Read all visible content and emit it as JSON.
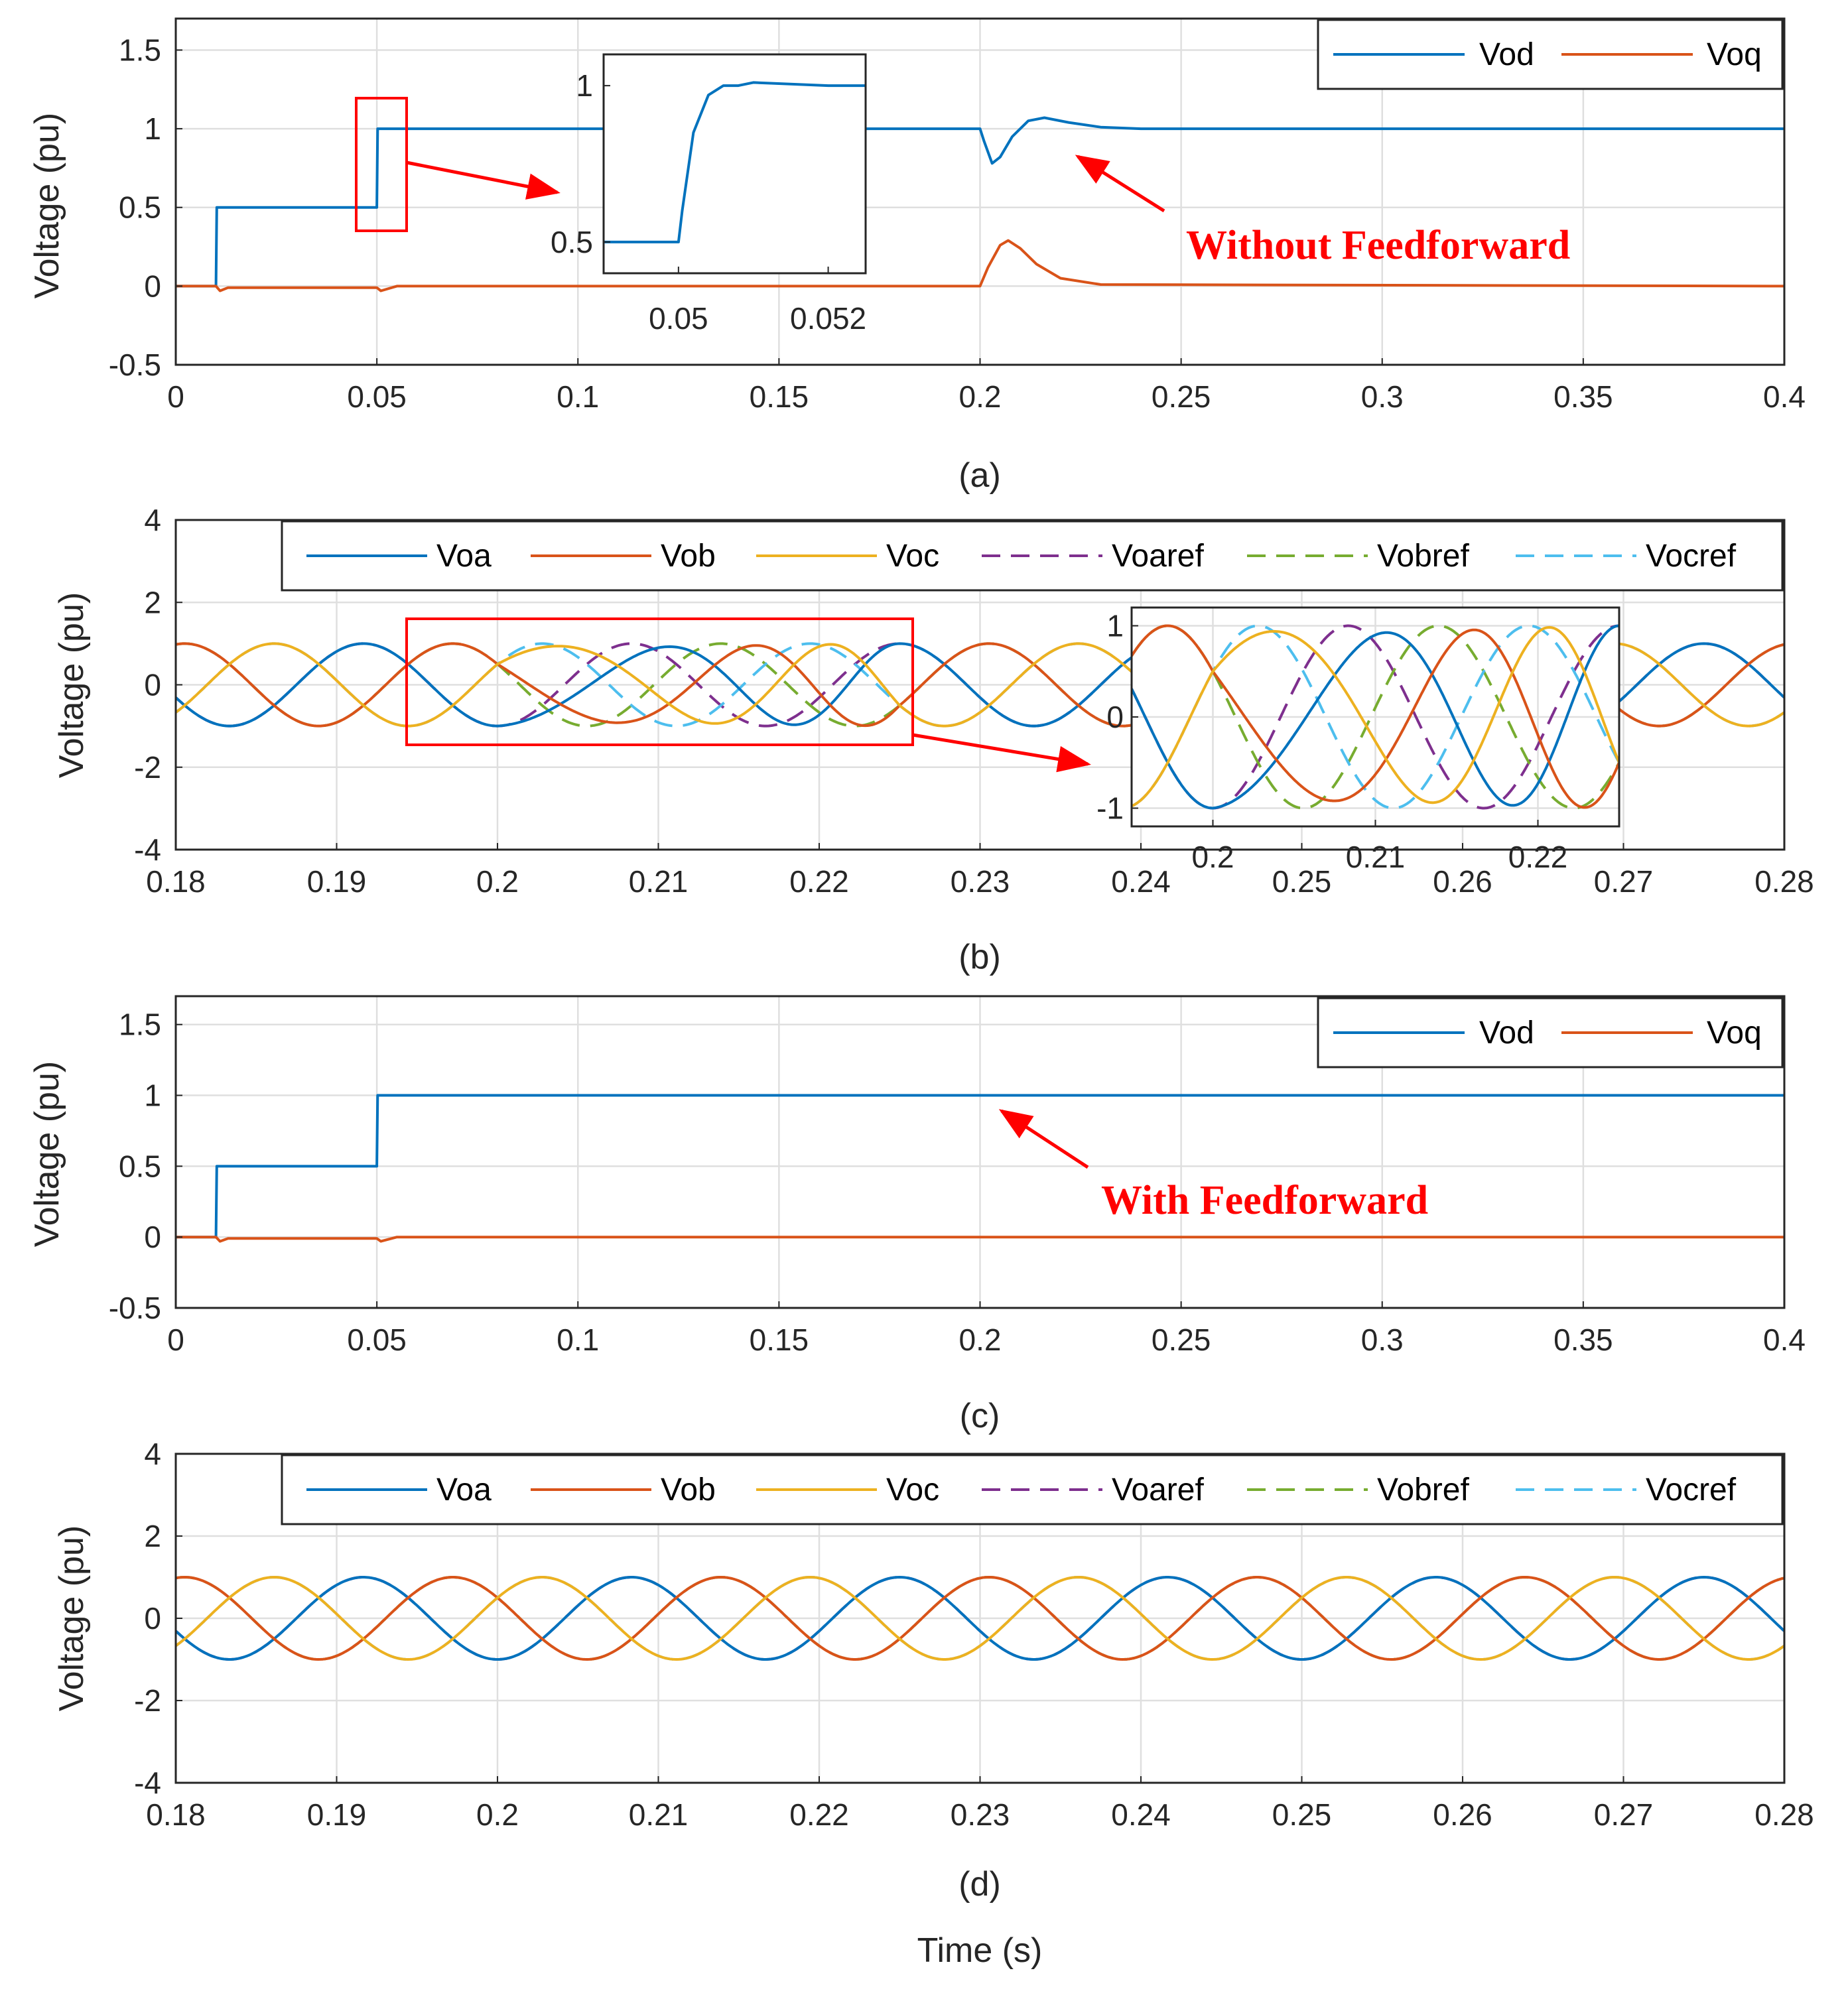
{
  "figure": {
    "xlabel": "Time (s)",
    "colors": {
      "Vod": "#0072BD",
      "Voq": "#D95319",
      "Voa": "#0072BD",
      "Vob": "#D95319",
      "Voc": "#EDB120",
      "Voaref": "#7E2F8E",
      "Vobref": "#77AC30",
      "Vocref": "#4DBEEE",
      "annotation": "#FF0000"
    }
  },
  "chart_data": [
    {
      "id": "a",
      "type": "line",
      "caption": "(a)",
      "ylabel": "Voltage (pu)",
      "xlim": [
        0,
        0.4
      ],
      "ylim": [
        -0.5,
        1.7
      ],
      "xticks": [
        "0",
        "0.05",
        "0.1",
        "0.15",
        "0.2",
        "0.25",
        "0.3",
        "0.35",
        "0.4"
      ],
      "yticks": [
        "-0.5",
        "0",
        "0.5",
        "1",
        "1.5"
      ],
      "series": [
        {
          "name": "Vod",
          "x": [
            0,
            0.01,
            0.0102,
            0.05,
            0.0502,
            0.2,
            0.201,
            0.203,
            0.205,
            0.208,
            0.212,
            0.216,
            0.222,
            0.23,
            0.24,
            0.4
          ],
          "y": [
            0,
            0,
            0.5,
            0.5,
            1.0,
            1.0,
            0.92,
            0.78,
            0.82,
            0.95,
            1.05,
            1.07,
            1.04,
            1.01,
            1.0,
            1.0
          ]
        },
        {
          "name": "Voq",
          "x": [
            0,
            0.01,
            0.011,
            0.013,
            0.05,
            0.051,
            0.055,
            0.2,
            0.202,
            0.205,
            0.207,
            0.21,
            0.214,
            0.22,
            0.23,
            0.4
          ],
          "y": [
            0,
            0,
            -0.03,
            -0.01,
            -0.01,
            -0.03,
            0,
            0,
            0.12,
            0.26,
            0.29,
            0.24,
            0.14,
            0.05,
            0.01,
            0
          ]
        }
      ],
      "annotation": "Without Feedforward",
      "inset": {
        "xlim": [
          0.049,
          0.0525
        ],
        "ylim": [
          0.4,
          1.1
        ],
        "xticks": [
          "0.05",
          "0.052"
        ],
        "yticks": [
          "0.5",
          "1"
        ],
        "series": {
          "name": "Vod",
          "x": [
            0.049,
            0.05,
            0.05005,
            0.0502,
            0.0504,
            0.0506,
            0.0508,
            0.051,
            0.052,
            0.0525
          ],
          "y": [
            0.5,
            0.5,
            0.6,
            0.85,
            0.97,
            1.0,
            1.0,
            1.01,
            1.0,
            1.0
          ]
        }
      }
    },
    {
      "id": "b",
      "type": "line",
      "caption": "(b)",
      "ylabel": "Voltage (pu)",
      "xlim": [
        0.18,
        0.28
      ],
      "ylim": [
        -4,
        4
      ],
      "xticks": [
        "0.18",
        "0.19",
        "0.2",
        "0.21",
        "0.22",
        "0.23",
        "0.24",
        "0.25",
        "0.26",
        "0.27",
        "0.28"
      ],
      "yticks": [
        "-4",
        "-2",
        "0",
        "2",
        "4"
      ],
      "signal": {
        "amplitude": 1,
        "frequency_hz": 60,
        "phases_deg": {
          "a": -90,
          "b": -210,
          "c": 30
        },
        "disturbance_start": 0.2,
        "disturbance_end": 0.225
      },
      "legend": [
        "Voa",
        "Vob",
        "Voc",
        "Voaref",
        "Vobref",
        "Vocref"
      ],
      "inset": {
        "xlim": [
          0.195,
          0.225
        ],
        "ylim": [
          -1.2,
          1.2
        ],
        "xticks": [
          "0.2",
          "0.21",
          "0.22"
        ],
        "yticks": [
          "-1",
          "0",
          "1"
        ]
      }
    },
    {
      "id": "c",
      "type": "line",
      "caption": "(c)",
      "ylabel": "Voltage (pu)",
      "xlim": [
        0,
        0.4
      ],
      "ylim": [
        -0.5,
        1.7
      ],
      "xticks": [
        "0",
        "0.05",
        "0.1",
        "0.15",
        "0.2",
        "0.25",
        "0.3",
        "0.35",
        "0.4"
      ],
      "yticks": [
        "-0.5",
        "0",
        "0.5",
        "1",
        "1.5"
      ],
      "series": [
        {
          "name": "Vod",
          "x": [
            0,
            0.01,
            0.0102,
            0.05,
            0.0502,
            0.4
          ],
          "y": [
            0,
            0,
            0.5,
            0.5,
            1.0,
            1.0
          ]
        },
        {
          "name": "Voq",
          "x": [
            0,
            0.01,
            0.011,
            0.013,
            0.05,
            0.051,
            0.055,
            0.4
          ],
          "y": [
            0,
            0,
            -0.03,
            -0.01,
            -0.01,
            -0.03,
            0,
            0
          ]
        }
      ],
      "annotation": "With Feedforward"
    },
    {
      "id": "d",
      "type": "line",
      "caption": "(d)",
      "ylabel": "Voltage (pu)",
      "xlim": [
        0.18,
        0.28
      ],
      "ylim": [
        -4,
        4
      ],
      "xticks": [
        "0.18",
        "0.19",
        "0.2",
        "0.21",
        "0.22",
        "0.23",
        "0.24",
        "0.25",
        "0.26",
        "0.27",
        "0.28"
      ],
      "yticks": [
        "-4",
        "-2",
        "0",
        "2",
        "4"
      ],
      "signal": {
        "amplitude": 1,
        "frequency_hz": 60,
        "phases_deg": {
          "a": -90,
          "b": -210,
          "c": 30
        }
      },
      "legend": [
        "Voa",
        "Vob",
        "Voc",
        "Voaref",
        "Vobref",
        "Vocref"
      ]
    }
  ]
}
